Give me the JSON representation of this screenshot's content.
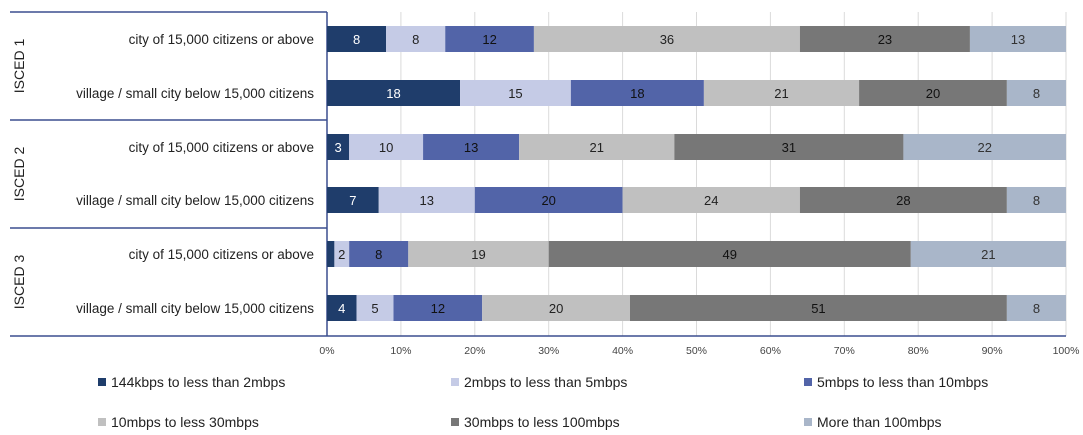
{
  "chart_data": {
    "type": "bar",
    "orientation": "horizontal",
    "stacked": true,
    "percent": true,
    "xlim": [
      0,
      100
    ],
    "x_ticks": [
      "0%",
      "10%",
      "20%",
      "30%",
      "40%",
      "50%",
      "60%",
      "70%",
      "80%",
      "90%",
      "100%"
    ],
    "grid": true,
    "legend_position": "bottom",
    "groups": [
      {
        "label": "ISCED 1",
        "categories": [
          "city of 15,000 citizens or above",
          "village / small city below 15,000 citizens"
        ]
      },
      {
        "label": "ISCED 2",
        "categories": [
          "city of 15,000 citizens or above",
          "village / small city below 15,000 citizens"
        ]
      },
      {
        "label": "ISCED 3",
        "categories": [
          "city of 15,000 citizens or above",
          "village / small city below 15,000 citizens"
        ]
      }
    ],
    "series": [
      {
        "name": "144kbps to less than 2mbps",
        "color": "#1f3d6b",
        "text_color": "#ffffff",
        "values": [
          8,
          18,
          3,
          7,
          1,
          4
        ]
      },
      {
        "name": "2mbps to less than 5mbps",
        "color": "#c5cbe6",
        "text_color": "#222222",
        "values": [
          8,
          15,
          10,
          13,
          2,
          5
        ]
      },
      {
        "name": "5mbps to less than 10mbps",
        "color": "#5264a8",
        "text_color": "#111111",
        "values": [
          12,
          18,
          13,
          20,
          8,
          12
        ]
      },
      {
        "name": "10mbps to less 30mbps",
        "color": "#c0c0c0",
        "text_color": "#222222",
        "values": [
          36,
          21,
          21,
          24,
          19,
          20
        ]
      },
      {
        "name": "30mbps to less 100mbps",
        "color": "#777777",
        "text_color": "#111111",
        "values": [
          23,
          20,
          31,
          28,
          49,
          51
        ]
      },
      {
        "name": "More than 100mbps",
        "color": "#a9b6c9",
        "text_color": "#333333",
        "values": [
          13,
          8,
          22,
          8,
          21,
          8
        ]
      }
    ]
  }
}
